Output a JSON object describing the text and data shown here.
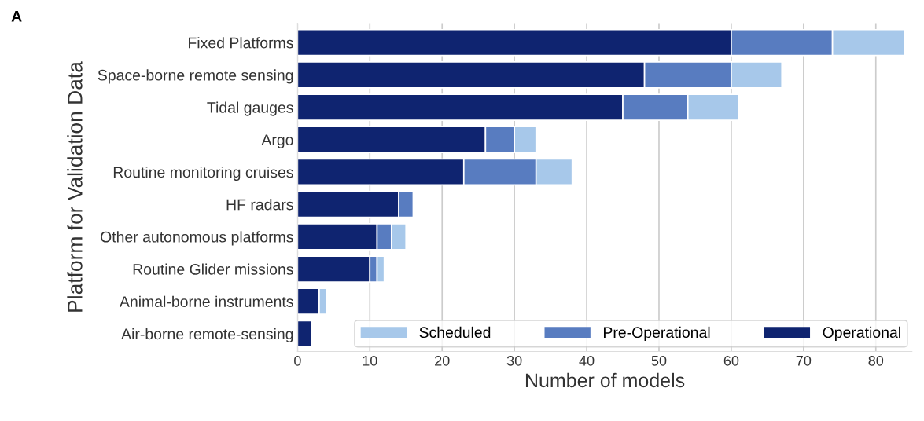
{
  "chart_data": {
    "type": "bar",
    "orientation": "horizontal",
    "stacked": true,
    "categories": [
      "Fixed Platforms",
      "Space-borne remote sensing",
      "Tidal gauges",
      "Argo",
      "Routine monitoring cruises",
      "HF radars",
      "Other autonomous platforms",
      "Routine Glider missions",
      "Animal-borne instruments",
      "Air-borne remote-sensing"
    ],
    "series": [
      {
        "name": "Operational",
        "color": "#0f2470",
        "values": [
          60,
          48,
          45,
          26,
          23,
          14,
          11,
          10,
          3,
          2
        ]
      },
      {
        "name": "Pre-Operational",
        "color": "#587cc0",
        "values": [
          14,
          12,
          9,
          4,
          10,
          2,
          2,
          1,
          0,
          0
        ]
      },
      {
        "name": "Scheduled",
        "color": "#a7c8ea",
        "values": [
          10,
          7,
          7,
          3,
          5,
          0,
          2,
          1,
          1,
          0
        ]
      }
    ],
    "xlabel": "Number of models",
    "ylabel": "Platform for Validation Data",
    "xlim": [
      0,
      85
    ],
    "xticks": [
      0,
      10,
      20,
      30,
      40,
      50,
      60,
      70,
      80
    ],
    "grid": "x",
    "legend": "bottom right",
    "annotations": [
      "A"
    ]
  }
}
